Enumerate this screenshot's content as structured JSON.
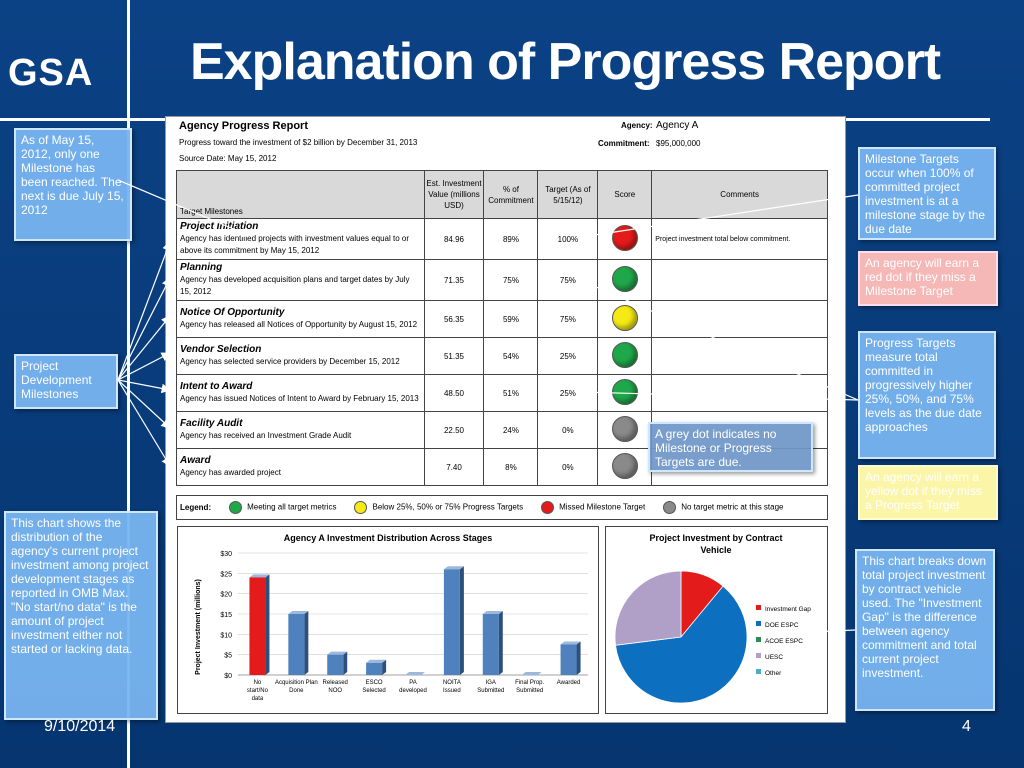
{
  "slide": {
    "title": "Explanation of Progress Report",
    "logo": "GSA",
    "date": "9/10/2014",
    "page": "4"
  },
  "report": {
    "title": "Agency Progress Report",
    "subtitle": "Progress toward the investment of $2 billion by December 31, 2013",
    "source": "Source Date: May 15, 2012",
    "agency_label": "Agency:",
    "agency": "Agency A",
    "commitment_label": "Commitment:",
    "commitment": "$95,000,000",
    "headers": [
      "Target Milestones",
      "Est. Investment Value (millions USD)",
      "% of Commitment",
      "Target (As of 5/15/12)",
      "Score",
      "Comments"
    ],
    "rows": [
      {
        "name": "Project Initiation",
        "desc": "Agency has identified projects with investment values equal to or above its commitment by May 15, 2012",
        "value": "84.96",
        "pct": "89%",
        "target": "100%",
        "score": "red",
        "comment": "Project investment total below commitment."
      },
      {
        "name": "Planning",
        "desc": "Agency has developed acquisition plans and target dates by July 15, 2012",
        "value": "71.35",
        "pct": "75%",
        "target": "75%",
        "score": "green",
        "comment": ""
      },
      {
        "name": "Notice Of Opportunity",
        "desc": "Agency has released all Notices of Opportunity by August 15, 2012",
        "value": "56.35",
        "pct": "59%",
        "target": "75%",
        "score": "yellow",
        "comment": ""
      },
      {
        "name": "Vendor Selection",
        "desc": "Agency has selected service providers by December 15, 2012",
        "value": "51.35",
        "pct": "54%",
        "target": "25%",
        "score": "green",
        "comment": ""
      },
      {
        "name": "Intent to Award",
        "desc": "Agency has issued Notices of Intent to Award by February 15, 2013",
        "value": "48.50",
        "pct": "51%",
        "target": "25%",
        "score": "green",
        "comment": ""
      },
      {
        "name": "Facility Audit",
        "desc": "Agency has received an Investment Grade Audit",
        "value": "22.50",
        "pct": "24%",
        "target": "0%",
        "score": "grey",
        "comment": ""
      },
      {
        "name": "Award",
        "desc": "Agency has awarded project",
        "value": "7.40",
        "pct": "8%",
        "target": "0%",
        "score": "grey",
        "comment": ""
      }
    ],
    "legend": {
      "label": "Legend:",
      "items": [
        {
          "color": "green",
          "text": "Meeting all target metrics"
        },
        {
          "color": "yellow",
          "text": "Below 25%, 50% or 75% Progress Targets"
        },
        {
          "color": "red",
          "text": "Missed Milestone Target"
        },
        {
          "color": "grey",
          "text": "No target metric at this stage"
        }
      ]
    }
  },
  "colors": {
    "red": "#e31b1b",
    "green": "#1fa84a",
    "yellow": "#f5ea14",
    "grey": "#8a8a8a",
    "bar_blue": "#4f81bd",
    "bar_red": "#e31b1b"
  },
  "chart_data": [
    {
      "type": "bar",
      "title": "Agency A Investment Distribution Across Stages",
      "ylabel": "Project Investment (millions)",
      "categories": [
        "No start/No data",
        "Acquisition Plan Done",
        "Released NOO",
        "ESCO Selected",
        "PA developed",
        "NOITA Issued",
        "IGA Submitted",
        "Final Prop. Submitted",
        "Awarded"
      ],
      "values": [
        24,
        15,
        5,
        3,
        0,
        26,
        15,
        0,
        7.5
      ],
      "ylim": [
        0,
        30
      ],
      "yticks": [
        "$0",
        "$5",
        "$10",
        "$15",
        "$20",
        "$25",
        "$30"
      ]
    },
    {
      "type": "pie",
      "title": "Project Investment by Contract Vehicle",
      "labels": [
        "Investment Gap",
        "DOE ESPC",
        "ACOE ESPC",
        "UESC",
        "Other"
      ],
      "values": [
        11,
        62,
        0,
        27,
        0
      ],
      "colors": [
        "#e31b1b",
        "#0c6fc0",
        "#2e8b57",
        "#b0a0c8",
        "#4bacc6"
      ]
    }
  ],
  "callouts": {
    "milestone_reached": "As of May 15, 2012, only one Milestone has been reached. The next is due July 15, 2012",
    "project_dev": "Project Development Milestones",
    "milestone_targets": "Milestone Targets occur when 100% of committed project investment is at a milestone stage by the due date",
    "red_dot": "An agency will earn a red dot if they miss a Milestone Target",
    "progress_targets": "Progress Targets measure total committed in progressively higher 25%, 50%, and 75% levels as the due date approaches",
    "yellow_dot": "An agency will earn a yellow dot if they miss a Progress Target",
    "grey_dot": "A grey dot indicates no Milestone or Progress Targets are due.",
    "chart_left": "This chart shows the distribution of the agency's current project investment among project development stages as reported in OMB Max. \"No start/no data\" is the amount of project investment either not started or lacking data.",
    "chart_right": "This chart breaks down total project investment by contract vehicle used. The \"Investment Gap\" is the difference between agency commitment and total current project investment."
  }
}
